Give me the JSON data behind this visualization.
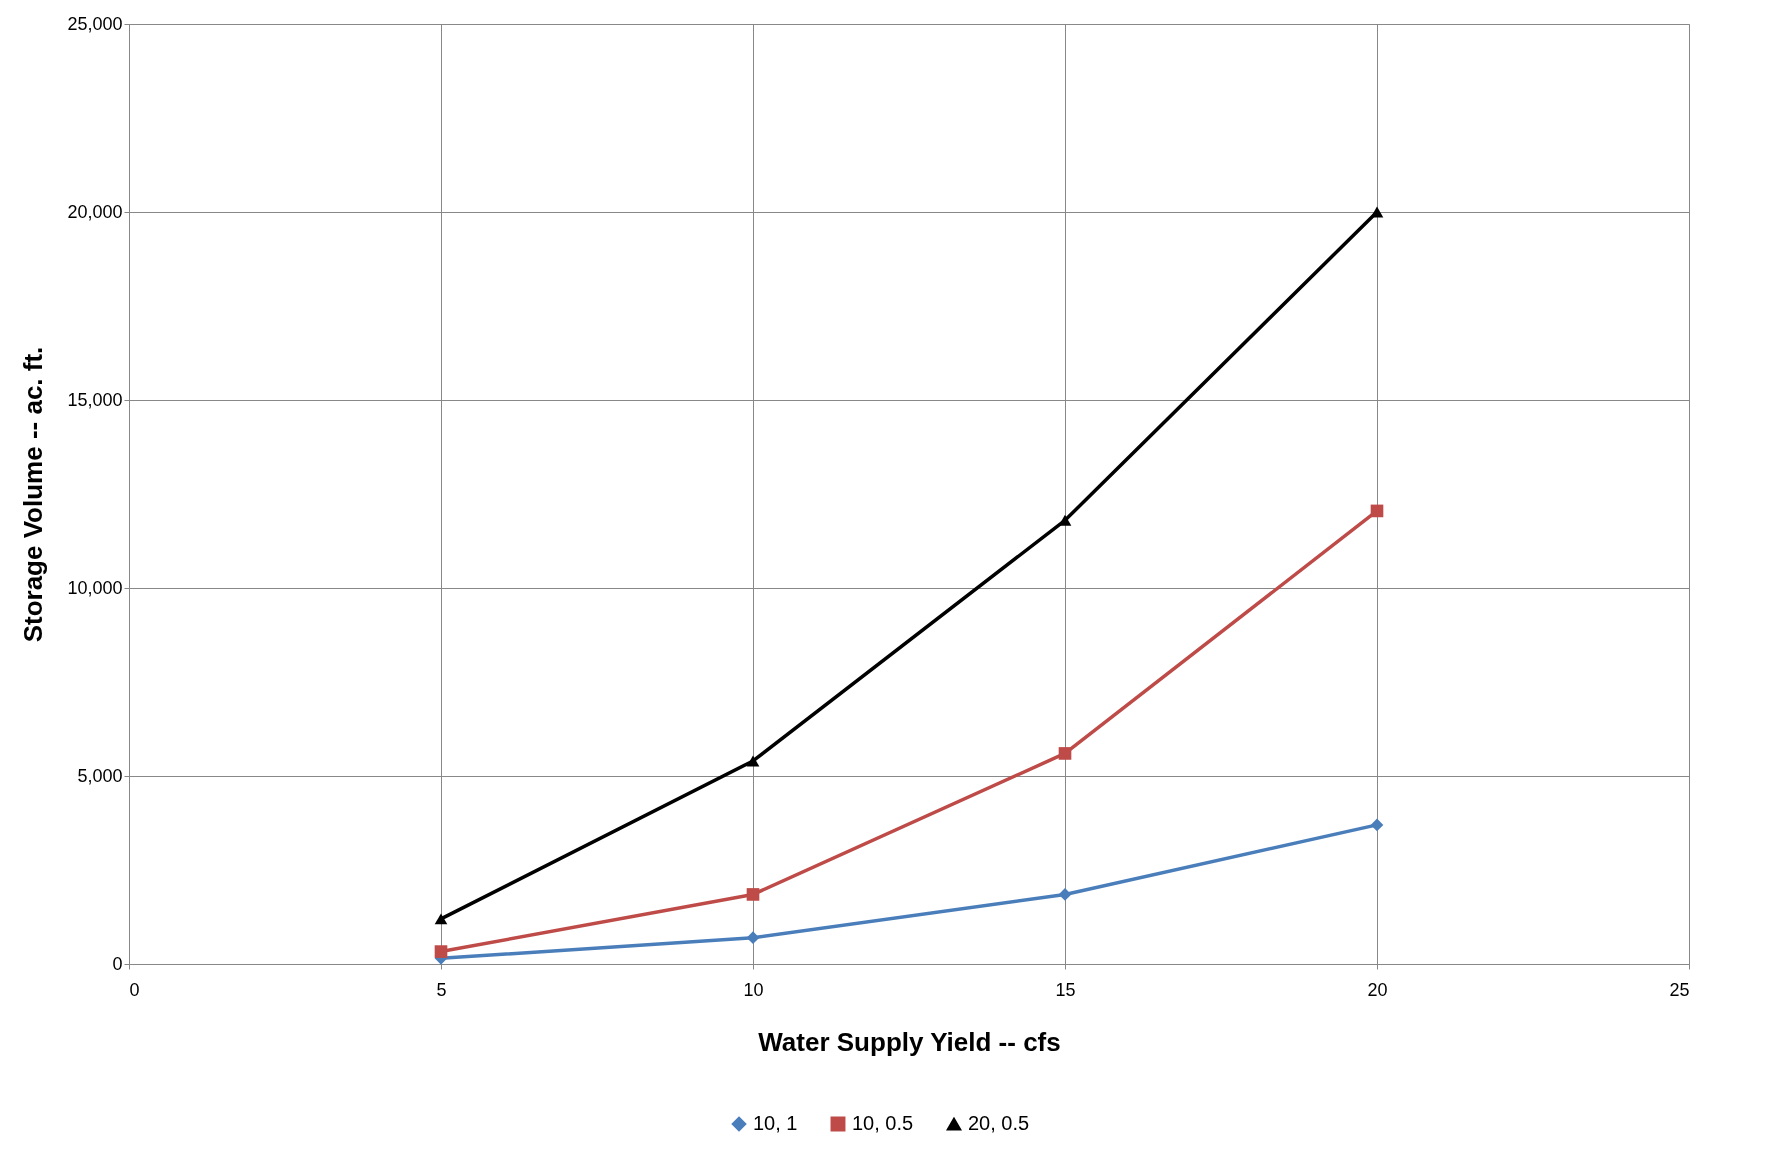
{
  "chart_data": {
    "type": "line",
    "xlabel": "Water Supply Yield -- cfs",
    "ylabel": "Storage Volume -- ac. ft.",
    "x": [
      5,
      10,
      15,
      20
    ],
    "series": [
      {
        "name": "10, 1",
        "color": "#4a7ebb",
        "marker": "diamond",
        "values": [
          150,
          700,
          1850,
          3700
        ]
      },
      {
        "name": "10, 0.5",
        "color": "#be4b48",
        "marker": "square",
        "values": [
          330,
          1850,
          5600,
          12050
        ]
      },
      {
        "name": "20, 0.5",
        "color": "#000000",
        "marker": "triangle",
        "values": [
          1200,
          5400,
          11800,
          20000
        ]
      }
    ],
    "xlim": [
      0,
      25
    ],
    "xticks": [
      0,
      5,
      10,
      15,
      20,
      25
    ],
    "ylim": [
      0,
      25000
    ],
    "yticks": [
      0,
      {
        "value": 5000,
        "label": "5,000"
      },
      {
        "value": 10000,
        "label": "10,000"
      },
      {
        "value": 15000,
        "label": "15,000"
      },
      {
        "value": 20000,
        "label": "20,000"
      },
      {
        "value": 25000,
        "label": "25,000"
      }
    ],
    "grid": true,
    "legend": "bottom",
    "line_style": "solid"
  }
}
